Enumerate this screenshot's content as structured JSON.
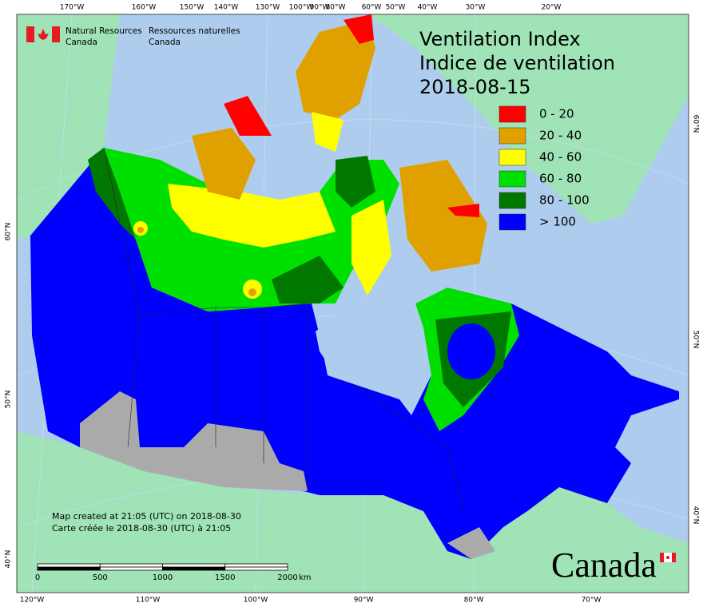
{
  "title": {
    "en": "Ventilation Index",
    "fr": "Indice de ventilation",
    "date": "2018-08-15"
  },
  "header": {
    "agency_en": [
      "Natural Resources",
      "Canada"
    ],
    "agency_fr": [
      "Ressources naturelles",
      "Canada"
    ]
  },
  "legend": [
    {
      "label": "0 - 20",
      "color": "#ff0000"
    },
    {
      "label": "20 - 40",
      "color": "#e0a000"
    },
    {
      "label": "40 - 60",
      "color": "#ffff00"
    },
    {
      "label": "60 - 80",
      "color": "#00e000"
    },
    {
      "label": "80 - 100",
      "color": "#007800"
    },
    {
      "label": "> 100",
      "color": "#0000ff"
    }
  ],
  "graticule": {
    "top": [
      "170°W",
      "160°W",
      "150°W",
      "140°W",
      "130°W",
      "100°W",
      "90°W",
      "80°W",
      "60°W",
      "50°W",
      "40°W",
      "30°W",
      "20°W"
    ],
    "bottom": [
      "120°W",
      "110°W",
      "100°W",
      "90°W",
      "80°W",
      "70°W"
    ],
    "left": [
      "60°N",
      "50°N",
      "40°N"
    ],
    "right": [
      "60°N",
      "50°N",
      "40°N"
    ]
  },
  "scale": {
    "ticks": [
      0,
      500,
      1000,
      1500,
      2000
    ],
    "unit": "km"
  },
  "credits": [
    "Map created at 21:05 (UTC) on 2018-08-30",
    "Carte créée le 2018-08-30 (UTC) à 21:05"
  ],
  "wordmark": "Canada"
}
